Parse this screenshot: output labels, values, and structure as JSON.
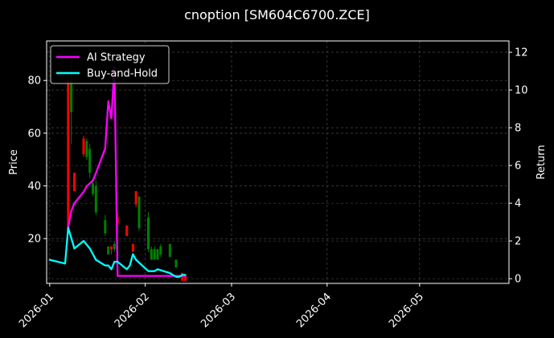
{
  "chart_data": {
    "type": "line",
    "title": "cnoption [SM604C6700.ZCE]",
    "ylabel": "Price",
    "y2label": "Return",
    "x_ticks": [
      "2026-01",
      "2026-02",
      "2026-03",
      "2026-04",
      "2026-05"
    ],
    "x_range": [
      "2025-12-31",
      "2026-05-30"
    ],
    "ylim": [
      3,
      95
    ],
    "y_ticks": [
      20,
      40,
      60,
      80
    ],
    "y2lim": [
      -0.25,
      12.6
    ],
    "y2_ticks": [
      0,
      2,
      4,
      6,
      8,
      10,
      12
    ],
    "grid": true,
    "legend_placement": "top-left",
    "colors": {
      "background": "#000000",
      "axes": "#ffffff",
      "grid": "#555555",
      "up_candle": "#008000",
      "down_candle": "#ff0000"
    },
    "candles": [
      {
        "date": "2026-01-07",
        "open": 22,
        "high": 82,
        "low": 22,
        "close": 80,
        "color": "#ff0000"
      },
      {
        "date": "2026-01-08",
        "open": 80,
        "high": 88,
        "low": 56,
        "close": 68,
        "color": "#008000"
      },
      {
        "date": "2026-01-09",
        "open": 45,
        "high": 45,
        "low": 38,
        "close": 38,
        "color": "#ff0000"
      },
      {
        "date": "2026-01-12",
        "open": 58,
        "high": 59,
        "low": 51,
        "close": 52,
        "color": "#ff0000"
      },
      {
        "date": "2026-01-13",
        "open": 57,
        "high": 58,
        "low": 50,
        "close": 51,
        "color": "#008000"
      },
      {
        "date": "2026-01-14",
        "open": 54,
        "high": 56,
        "low": 43,
        "close": 45,
        "color": "#008000"
      },
      {
        "date": "2026-01-15",
        "open": 41,
        "high": 43,
        "low": 36,
        "close": 37,
        "color": "#008000"
      },
      {
        "date": "2026-01-16",
        "open": 40,
        "high": 42,
        "low": 29,
        "close": 30,
        "color": "#008000"
      },
      {
        "date": "2026-01-19",
        "open": 27,
        "high": 29,
        "low": 21,
        "close": 22,
        "color": "#008000"
      },
      {
        "date": "2026-01-20",
        "open": 17,
        "high": 17,
        "low": 14,
        "close": 14,
        "color": "#008000"
      },
      {
        "date": "2026-01-21",
        "open": 17,
        "high": 17,
        "low": 14,
        "close": 16,
        "color": "#ff0000"
      },
      {
        "date": "2026-01-22",
        "open": 18,
        "high": 19,
        "low": 15,
        "close": 16,
        "color": "#008000"
      },
      {
        "date": "2026-01-23",
        "open": 28,
        "high": 30,
        "low": 22,
        "close": 26,
        "color": "#ff0000"
      },
      {
        "date": "2026-01-26",
        "open": 25,
        "high": 25,
        "low": 21,
        "close": 21,
        "color": "#ff0000"
      },
      {
        "date": "2026-01-28",
        "open": 18,
        "high": 18,
        "low": 15,
        "close": 15,
        "color": "#ff0000"
      },
      {
        "date": "2026-01-29",
        "open": 38,
        "high": 38,
        "low": 32,
        "close": 33,
        "color": "#ff0000"
      },
      {
        "date": "2026-01-30",
        "open": 36,
        "high": 36,
        "low": 23,
        "close": 24,
        "color": "#008000"
      },
      {
        "date": "2026-02-02",
        "open": 28,
        "high": 30,
        "low": 15,
        "close": 16,
        "color": "#008000"
      },
      {
        "date": "2026-02-03",
        "open": 16,
        "high": 17,
        "low": 12,
        "close": 12,
        "color": "#008000"
      },
      {
        "date": "2026-02-04",
        "open": 16,
        "high": 17,
        "low": 12,
        "close": 12,
        "color": "#008000"
      },
      {
        "date": "2026-02-05",
        "open": 16,
        "high": 16,
        "low": 12,
        "close": 12,
        "color": "#008000"
      },
      {
        "date": "2026-02-06",
        "open": 17,
        "high": 18,
        "low": 13,
        "close": 14,
        "color": "#008000"
      },
      {
        "date": "2026-02-09",
        "open": 18,
        "high": 18,
        "low": 13,
        "close": 13,
        "color": "#008000"
      },
      {
        "date": "2026-02-11",
        "open": 12,
        "high": 12,
        "low": 9,
        "close": 9,
        "color": "#008000"
      },
      {
        "date": "2026-02-13",
        "open": 7,
        "high": 7,
        "low": 4,
        "close": 4,
        "color": "#ff0000"
      },
      {
        "date": "2026-02-14",
        "open": 6,
        "high": 6,
        "low": 4,
        "close": 4,
        "color": "#ff0000"
      }
    ],
    "series": [
      {
        "name": "AI Strategy",
        "color": "#ff00ff",
        "axis": "right",
        "points": [
          {
            "x": "2026-01-07",
            "y": 2.7
          },
          {
            "x": "2026-01-08",
            "y": 3.6
          },
          {
            "x": "2026-01-09",
            "y": 4.0
          },
          {
            "x": "2026-01-12",
            "y": 4.6
          },
          {
            "x": "2026-01-13",
            "y": 4.9
          },
          {
            "x": "2026-01-15",
            "y": 5.2
          },
          {
            "x": "2026-01-16",
            "y": 5.6
          },
          {
            "x": "2026-01-19",
            "y": 6.9
          },
          {
            "x": "2026-01-20",
            "y": 9.4
          },
          {
            "x": "2026-01-21",
            "y": 8.5
          },
          {
            "x": "2026-01-22",
            "y": 11.2
          },
          {
            "x": "2026-01-23",
            "y": 0.15
          },
          {
            "x": "2026-01-30",
            "y": 0.15
          },
          {
            "x": "2026-02-06",
            "y": 0.15
          },
          {
            "x": "2026-02-14",
            "y": 0.15
          }
        ]
      },
      {
        "name": "Buy-and-Hold",
        "color": "#00ffff",
        "axis": "right",
        "points": [
          {
            "x": "2026-01-01",
            "y": 1.0
          },
          {
            "x": "2026-01-06",
            "y": 0.8
          },
          {
            "x": "2026-01-07",
            "y": 2.7
          },
          {
            "x": "2026-01-09",
            "y": 1.6
          },
          {
            "x": "2026-01-12",
            "y": 2.0
          },
          {
            "x": "2026-01-14",
            "y": 1.6
          },
          {
            "x": "2026-01-16",
            "y": 1.0
          },
          {
            "x": "2026-01-19",
            "y": 0.7
          },
          {
            "x": "2026-01-20",
            "y": 0.7
          },
          {
            "x": "2026-01-21",
            "y": 0.5
          },
          {
            "x": "2026-01-22",
            "y": 0.9
          },
          {
            "x": "2026-01-23",
            "y": 0.9
          },
          {
            "x": "2026-01-26",
            "y": 0.5
          },
          {
            "x": "2026-01-27",
            "y": 0.7
          },
          {
            "x": "2026-01-28",
            "y": 1.3
          },
          {
            "x": "2026-01-29",
            "y": 1.0
          },
          {
            "x": "2026-02-02",
            "y": 0.4
          },
          {
            "x": "2026-02-04",
            "y": 0.4
          },
          {
            "x": "2026-02-05",
            "y": 0.5
          },
          {
            "x": "2026-02-09",
            "y": 0.3
          },
          {
            "x": "2026-02-11",
            "y": 0.1
          },
          {
            "x": "2026-02-12",
            "y": 0.1
          },
          {
            "x": "2026-02-13",
            "y": 0.2
          },
          {
            "x": "2026-02-14",
            "y": 0.2
          }
        ]
      }
    ]
  }
}
